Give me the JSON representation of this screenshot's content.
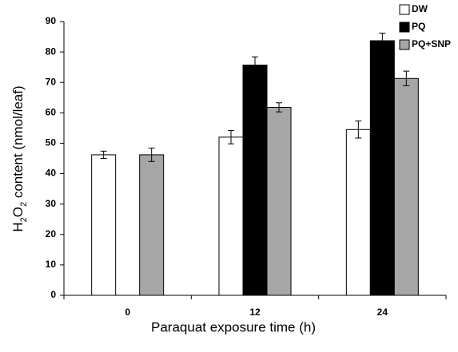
{
  "chart_data": {
    "type": "bar",
    "y_label": [
      "H",
      "2",
      "O",
      "2",
      " content (nmol/leaf)"
    ],
    "x_label": "Paraquat  exposure  time  (h)",
    "categories": [
      "0",
      "12",
      "24"
    ],
    "series": [
      {
        "name": "DW",
        "color": "#ffffff",
        "values": [
          46.2,
          52.0,
          54.5
        ],
        "errors": [
          1.2,
          2.2,
          2.8
        ]
      },
      {
        "name": "PQ",
        "color": "#000000",
        "values": [
          null,
          75.7,
          83.7
        ],
        "errors": [
          null,
          2.7,
          2.5
        ]
      },
      {
        "name": "PQ+SNP",
        "color": "#a6a6a6",
        "values": [
          46.2,
          61.8,
          71.3
        ],
        "errors": [
          2.2,
          1.5,
          2.4
        ]
      }
    ],
    "ylim": [
      0,
      90
    ],
    "yticks": [
      0,
      10,
      20,
      30,
      40,
      50,
      60,
      70,
      80,
      90
    ],
    "legend": "top-right"
  }
}
